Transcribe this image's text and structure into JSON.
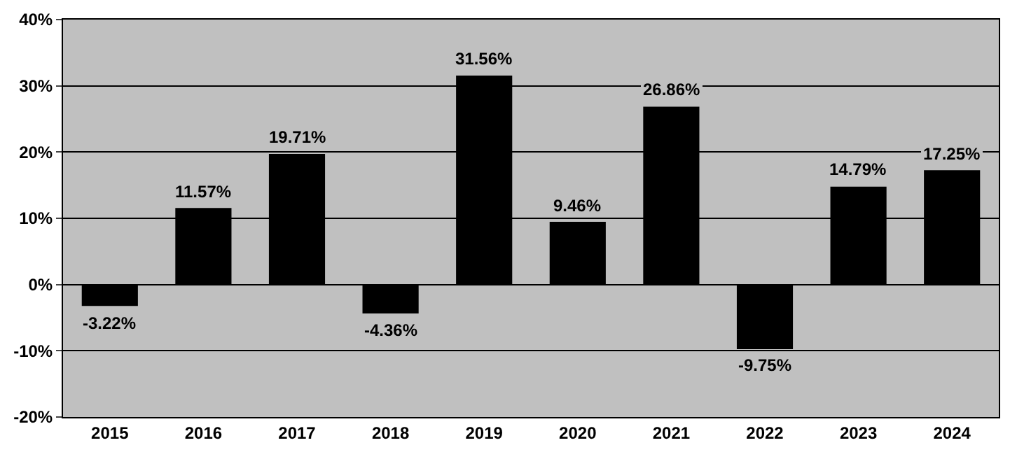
{
  "chart_data": {
    "type": "bar",
    "categories": [
      "2015",
      "2016",
      "2017",
      "2018",
      "2019",
      "2020",
      "2021",
      "2022",
      "2023",
      "2024"
    ],
    "values": [
      -3.22,
      11.57,
      19.71,
      -4.36,
      31.56,
      9.46,
      26.86,
      -9.75,
      14.79,
      17.25
    ],
    "value_labels": [
      "-3.22%",
      "11.57%",
      "19.71%",
      "-4.36%",
      "31.56%",
      "9.46%",
      "26.86%",
      "-9.75%",
      "14.79%",
      "17.25%"
    ],
    "color": "#000000",
    "ylim": [
      -20,
      40
    ],
    "yticks": [
      {
        "value": -20,
        "label": "-20%"
      },
      {
        "value": -10,
        "label": "-10%"
      },
      {
        "value": 0,
        "label": "0%"
      },
      {
        "value": 10,
        "label": "10%"
      },
      {
        "value": 20,
        "label": "20%"
      },
      {
        "value": 30,
        "label": "30%"
      },
      {
        "value": 40,
        "label": "40%"
      }
    ],
    "grid": "y"
  }
}
